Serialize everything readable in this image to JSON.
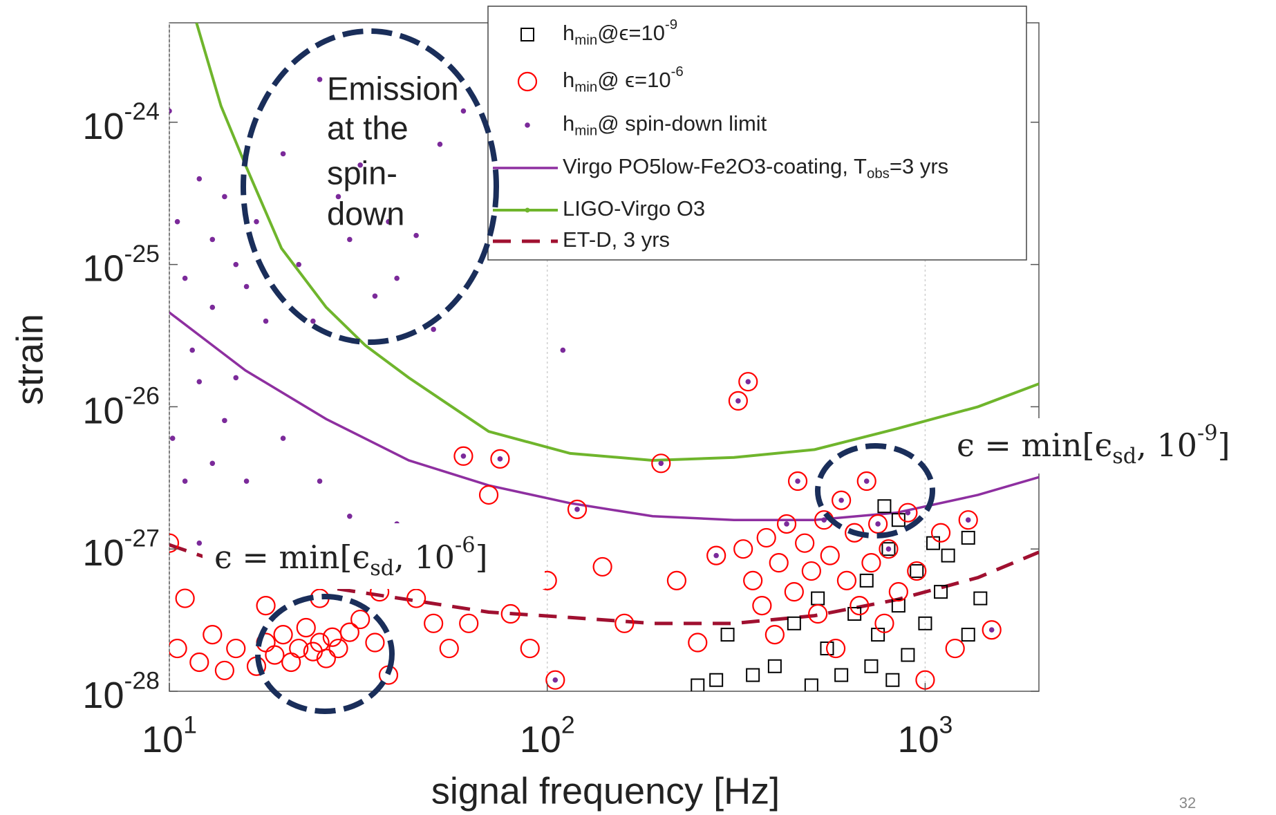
{
  "chart_data": {
    "type": "scatter",
    "x_label": "signal frequency [Hz]",
    "y_label": "strain",
    "xscale": "log",
    "yscale": "log",
    "xlim": [
      10,
      2000
    ],
    "ylim": [
      1e-28,
      5e-24
    ],
    "xticks": [
      {
        "value": 10,
        "label": "10^{1}"
      },
      {
        "value": 100,
        "label": "10^{2}"
      },
      {
        "value": 1000,
        "label": "10^{3}"
      }
    ],
    "yticks": [
      {
        "value": 1e-28,
        "label": "10^{-28}"
      },
      {
        "value": 1e-27,
        "label": "10^{-27}"
      },
      {
        "value": 1e-26,
        "label": "10^{-26}"
      },
      {
        "value": 1e-25,
        "label": "10^{-25}"
      },
      {
        "value": 1e-24,
        "label": "10^{-24}"
      }
    ],
    "legend": "upper right",
    "series": [
      {
        "name": "h_{min}@ϵ=10^{-9}",
        "marker": "square",
        "color": "#000000",
        "x": [
          250,
          280,
          300,
          350,
          400,
          450,
          500,
          520,
          550,
          600,
          650,
          700,
          720,
          750,
          800,
          820,
          850,
          900,
          950,
          1000,
          1050,
          1100,
          1150,
          1300,
          1400,
          1300,
          780,
          850
        ],
        "values": [
          1.1e-28,
          1.2e-28,
          2.5e-28,
          1.3e-28,
          1.5e-28,
          3e-28,
          1.1e-28,
          4.5e-28,
          2e-28,
          1.3e-28,
          3.5e-28,
          6e-28,
          1.5e-28,
          2.5e-28,
          1e-27,
          1.2e-28,
          4e-28,
          1.8e-28,
          7e-28,
          3e-28,
          1.1e-27,
          5e-28,
          9e-28,
          1.2e-27,
          4.5e-28,
          2.5e-28,
          2e-27,
          1.6e-27
        ]
      },
      {
        "name": "h_{min}@ ϵ=10^{-6}",
        "marker": "circle",
        "color": "#ff0000",
        "x": [
          10.5,
          11,
          12,
          13,
          14,
          15,
          17,
          18,
          19,
          20,
          21,
          22,
          23,
          24,
          25,
          26,
          27,
          28,
          30,
          32,
          35,
          38,
          18,
          25,
          10,
          20,
          36,
          45,
          50,
          55,
          60,
          62,
          70,
          75,
          80,
          90,
          100,
          105,
          120,
          140,
          160,
          200,
          220,
          250,
          280,
          320,
          340,
          330,
          350,
          370,
          380,
          400,
          410,
          430,
          450,
          460,
          480,
          500,
          520,
          540,
          560,
          580,
          600,
          620,
          650,
          670,
          700,
          720,
          750,
          780,
          800,
          850,
          900,
          950,
          1000,
          1100,
          1200,
          1300,
          1500
        ],
        "values": [
          2e-28,
          4.5e-28,
          1.6e-28,
          2.5e-28,
          1.4e-28,
          2e-28,
          1.5e-28,
          2.2e-28,
          1.8e-28,
          2.5e-28,
          1.6e-28,
          2e-28,
          2.8e-28,
          1.9e-28,
          2.2e-28,
          1.7e-28,
          2.4e-28,
          2e-28,
          2.6e-28,
          3.2e-28,
          2.2e-28,
          1.3e-28,
          4e-28,
          4.5e-28,
          1.1e-27,
          8e-28,
          5e-28,
          4.5e-28,
          3e-28,
          2e-28,
          4.5e-27,
          3e-28,
          2.4e-27,
          4.3e-27,
          3.5e-28,
          2e-28,
          6e-28,
          1.2e-28,
          1.9e-27,
          7.5e-28,
          3e-28,
          4e-27,
          6e-28,
          2.2e-28,
          9e-28,
          1.1e-26,
          1.5e-26,
          1e-27,
          6e-28,
          4e-28,
          1.2e-27,
          2.5e-28,
          8e-28,
          1.5e-27,
          5e-28,
          3e-27,
          1.1e-27,
          7e-28,
          3.5e-28,
          1.6e-27,
          9e-28,
          2e-28,
          2.2e-27,
          6e-28,
          1.3e-27,
          4e-28,
          3e-27,
          8e-28,
          1.5e-27,
          3e-28,
          1e-27,
          5e-28,
          1.8e-27,
          7e-28,
          1.2e-28,
          1.3e-27,
          2e-28,
          1.6e-27,
          2.7e-28
        ]
      },
      {
        "name": "h_{min}@ spin-down limit",
        "marker": "dot",
        "color": "#7b2a9a",
        "x": [
          10,
          10.5,
          11,
          12,
          11.5,
          13,
          14,
          13,
          15,
          16,
          17,
          10.2,
          11,
          12,
          14,
          15,
          18,
          20,
          22,
          25,
          24,
          28,
          30,
          32,
          35,
          38,
          40,
          45,
          50,
          52,
          60,
          110,
          13,
          16,
          20,
          25,
          30,
          40,
          12,
          18,
          60,
          75,
          120,
          200,
          320,
          340,
          460,
          600,
          700,
          900,
          1300,
          1500,
          105,
          280,
          540,
          750,
          800,
          430
        ],
        "values": [
          1.2e-24,
          2e-25,
          8e-26,
          4e-25,
          2.5e-26,
          1.5e-25,
          3e-25,
          5e-26,
          1e-25,
          7e-26,
          2e-25,
          6e-27,
          3e-27,
          1.5e-26,
          8e-27,
          1.6e-26,
          4e-26,
          6e-25,
          1e-25,
          2e-24,
          4e-26,
          3e-25,
          1.5e-25,
          5e-25,
          6e-26,
          2e-25,
          8e-26,
          1.6e-25,
          3.5e-26,
          7e-25,
          1.2e-24,
          2.5e-26,
          4e-27,
          3e-27,
          6e-27,
          3e-27,
          1.7e-27,
          1.5e-27,
          1.1e-27,
          1.4e-27,
          4.5e-27,
          4.3e-27,
          1.9e-27,
          4e-27,
          1.1e-26,
          1.5e-26,
          3e-27,
          2.2e-27,
          3e-27,
          1.8e-27,
          1.6e-27,
          2.7e-28,
          1.2e-28,
          9e-28,
          1.6e-27,
          1.5e-27,
          1e-27,
          1.5e-27
        ]
      },
      {
        "name": "Virgo PO5low-Fe2O3-coating, T_{obs}=3 yrs",
        "marker": "line",
        "color": "#8e2fa0",
        "x": [
          10,
          15.9,
          26,
          43,
          70,
          115,
          190,
          312,
          510,
          840,
          1380,
          2000
        ],
        "values": [
          4.6e-26,
          1.8e-26,
          8.2e-27,
          4.2e-27,
          2.8e-27,
          2.1e-27,
          1.7e-27,
          1.6e-27,
          1.6e-27,
          1.8e-27,
          2.4e-27,
          3.2e-27
        ]
      },
      {
        "name": "LIGO-Virgo O3",
        "marker": "line-dot",
        "color": "#6fb52c",
        "x": [
          11.8,
          13.7,
          15.9,
          19.8,
          26,
          33,
          43,
          70,
          115,
          190,
          312,
          510,
          840,
          1380,
          2000
        ],
        "values": [
          5e-24,
          1.3e-24,
          5e-25,
          1.3e-25,
          5e-26,
          2.7e-26,
          1.6e-26,
          6.7e-27,
          4.7e-27,
          4.2e-27,
          4.4e-27,
          5e-27,
          7e-27,
          1e-26,
          1.45e-26
        ]
      },
      {
        "name": "ET-D, 3 yrs",
        "marker": "dash",
        "color": "#a01030",
        "x": [
          10,
          15.9,
          26,
          43,
          70,
          115,
          190,
          312,
          510,
          840,
          1380,
          2000
        ],
        "values": [
          1.07e-27,
          7e-28,
          5.4e-28,
          4.4e-28,
          3.6e-28,
          3.3e-28,
          3e-28,
          3e-28,
          3.4e-28,
          4.4e-28,
          6.3e-28,
          9.5e-28
        ]
      }
    ],
    "annotations": {
      "emission": [
        "Emission",
        "at the",
        "spin-",
        "down"
      ],
      "eps9": "ϵ = min[ϵ_{sd}, 10^{-9}]",
      "eps6": "ϵ = min[ϵ_{sd}, 10^{-6}]"
    },
    "page_number": "32"
  }
}
